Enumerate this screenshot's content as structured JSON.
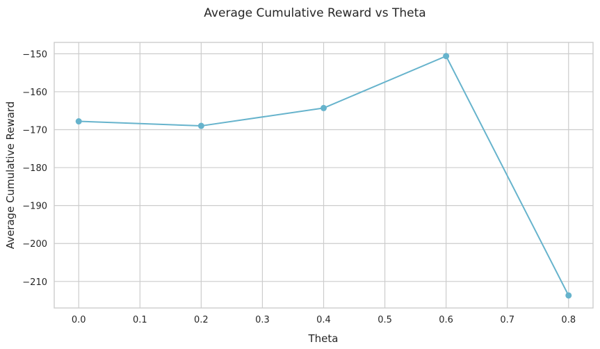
{
  "chart_data": {
    "type": "line",
    "title": "Average Cumulative Reward vs Theta",
    "xlabel": "Theta",
    "ylabel": "Average Cumulative Reward",
    "xlim": [
      -0.04,
      0.84
    ],
    "ylim": [
      -217,
      -147
    ],
    "xticks": [
      0.0,
      0.1,
      0.2,
      0.3,
      0.4,
      0.5,
      0.6,
      0.7,
      0.8
    ],
    "xtick_labels": [
      "0.0",
      "0.1",
      "0.2",
      "0.3",
      "0.4",
      "0.5",
      "0.6",
      "0.7",
      "0.8"
    ],
    "yticks": [
      -210,
      -200,
      -190,
      -180,
      -170,
      -160,
      -150
    ],
    "ytick_labels": [
      "−210",
      "−200",
      "−190",
      "−180",
      "−170",
      "−160",
      "−150"
    ],
    "grid": true,
    "series": [
      {
        "x": [
          0.0,
          0.2,
          0.4,
          0.6,
          0.8
        ],
        "y": [
          -167.8,
          -169.0,
          -164.3,
          -150.6,
          -213.7
        ],
        "color": "#66b3cc",
        "marker": "circle"
      }
    ]
  }
}
